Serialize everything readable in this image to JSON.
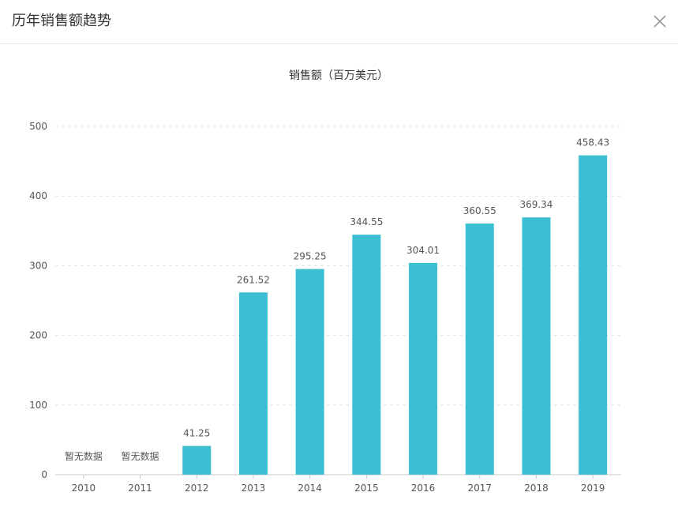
{
  "dialog": {
    "title": "历年销售额趋势"
  },
  "colors": {
    "bar": "#3dbfd3",
    "grid": "#e4e4e4",
    "axis": "#c8c8c8",
    "label": "#555555",
    "close_icon": "#999999"
  },
  "icons": {
    "close": "close-icon"
  },
  "chart_data": {
    "type": "bar",
    "title": "销售额（百万美元）",
    "xlabel": "",
    "ylabel": "",
    "categories": [
      "2010",
      "2011",
      "2012",
      "2013",
      "2014",
      "2015",
      "2016",
      "2017",
      "2018",
      "2019"
    ],
    "values": [
      null,
      null,
      41.25,
      261.52,
      295.25,
      344.55,
      304.01,
      360.55,
      369.34,
      458.43
    ],
    "data_labels": [
      "暂无数据",
      "暂无数据",
      "41.25",
      "261.52",
      "295.25",
      "344.55",
      "304.01",
      "360.55",
      "369.34",
      "458.43"
    ],
    "ylim": [
      0,
      500
    ],
    "yticks": [
      "0",
      "100",
      "200",
      "300",
      "400",
      "500"
    ],
    "grid": true,
    "legend": "none"
  }
}
